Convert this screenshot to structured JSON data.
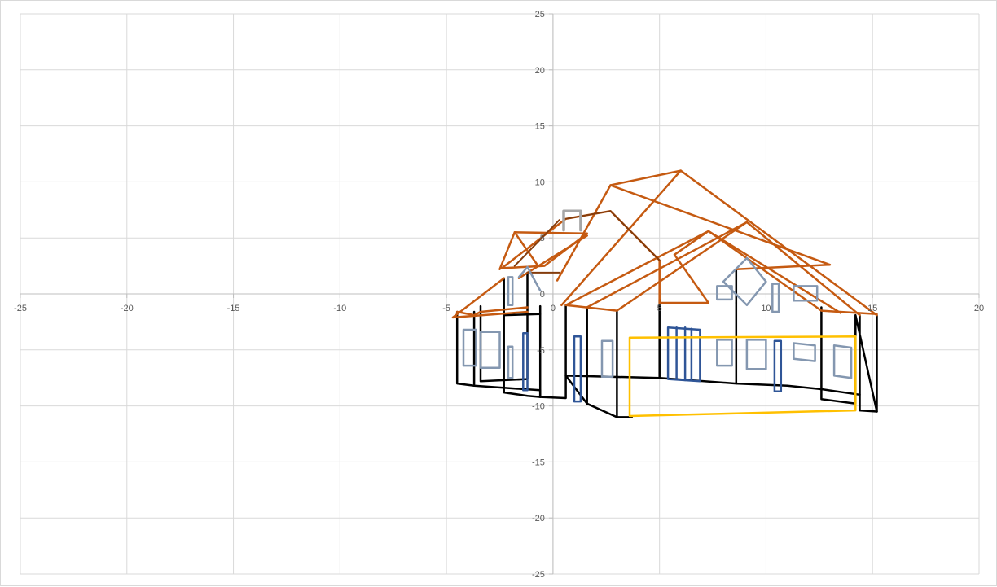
{
  "chart_data": {
    "type": "scatter",
    "title": "",
    "xlabel": "",
    "ylabel": "",
    "xlim": [
      -25,
      20
    ],
    "ylim": [
      -25,
      25
    ],
    "x_major": 5,
    "y_major": 5,
    "grid": true,
    "legend": "none",
    "x_ticks": [
      "-25",
      "-20",
      "-15",
      "-10",
      "-5",
      "0",
      "5",
      "10",
      "15",
      "20"
    ],
    "y_ticks": [
      "25",
      "20",
      "15",
      "10",
      "5",
      "0",
      "-5",
      "-10",
      "-15",
      "-20",
      "-25"
    ],
    "series": [
      {
        "color": "#000000",
        "width": 2.5,
        "segments": [
          [
            [
              -4.5,
              -1.6
            ],
            [
              -4.5,
              -8.0
            ],
            [
              -3.7,
              -8.2
            ],
            [
              -0.6,
              -8.6
            ],
            [
              -0.6,
              -9.2
            ],
            [
              0.6,
              -9.3
            ],
            [
              0.6,
              -7.3
            ],
            [
              5.0,
              -7.5
            ],
            [
              7.1,
              -7.8
            ],
            [
              8.6,
              -8.0
            ],
            [
              8.6,
              -0.8
            ]
          ],
          [
            [
              -3.7,
              -1.6
            ],
            [
              -3.7,
              -8.2
            ]
          ],
          [
            [
              -3.4,
              -1.1
            ],
            [
              -3.4,
              -7.8
            ],
            [
              -1.2,
              -7.6
            ],
            [
              -1.2,
              -1.2
            ]
          ],
          [
            [
              -2.3,
              -1.6
            ],
            [
              -2.3,
              -8.8
            ],
            [
              -1.2,
              -9.1
            ],
            [
              -0.6,
              -9.2
            ]
          ],
          [
            [
              -2.3,
              -1.9
            ],
            [
              -0.6,
              -1.8
            ]
          ],
          [
            [
              -1.2,
              -1.2
            ],
            [
              -1.2,
              1.9
            ]
          ],
          [
            [
              -0.6,
              -9.2
            ],
            [
              -0.6,
              -1.1
            ]
          ],
          [
            [
              -2.3,
              -1.6
            ],
            [
              -2.3,
              1.4
            ]
          ],
          [
            [
              0.6,
              -1.0
            ],
            [
              0.6,
              -7.3
            ],
            [
              1.6,
              -9.8
            ],
            [
              3.0,
              -11.0
            ],
            [
              3.7,
              -11.0
            ]
          ],
          [
            [
              1.6,
              -1.2
            ],
            [
              1.6,
              -9.8
            ]
          ],
          [
            [
              3.0,
              -1.5
            ],
            [
              3.0,
              -11.0
            ]
          ],
          [
            [
              5.0,
              -0.5
            ],
            [
              5.0,
              -7.5
            ]
          ],
          [
            [
              8.6,
              -8.0
            ],
            [
              11.0,
              -8.2
            ],
            [
              12.6,
              -8.5
            ],
            [
              14.4,
              -9.0
            ]
          ],
          [
            [
              8.6,
              -0.8
            ],
            [
              8.6,
              2.2
            ]
          ],
          [
            [
              12.6,
              -1.2
            ],
            [
              12.6,
              -9.4
            ],
            [
              14.2,
              -9.8
            ],
            [
              14.2,
              -1.9
            ],
            [
              15.2,
              -10.5
            ],
            [
              14.4,
              -10.4
            ],
            [
              14.4,
              -1.9
            ]
          ],
          [
            [
              15.2,
              -1.9
            ],
            [
              15.2,
              -10.5
            ]
          ]
        ]
      },
      {
        "color": "#c55a11",
        "width": 2.5,
        "segments": [
          [
            [
              -4.7,
              -2.1
            ],
            [
              -2.3,
              1.4
            ]
          ],
          [
            [
              -4.7,
              -2.1
            ],
            [
              -1.2,
              -1.6
            ]
          ],
          [
            [
              -4.5,
              -1.6
            ],
            [
              -3.7,
              -1.9
            ],
            [
              -3.4,
              -1.6
            ],
            [
              -1.2,
              -1.2
            ]
          ],
          [
            [
              -2.5,
              2.2
            ],
            [
              -1.8,
              5.5
            ],
            [
              1.5,
              5.4
            ]
          ],
          [
            [
              -1.8,
              5.5
            ],
            [
              -0.7,
              2.5
            ]
          ],
          [
            [
              -2.4,
              2.3
            ],
            [
              -0.4,
              2.5
            ],
            [
              1.6,
              5.4
            ]
          ],
          [
            [
              -2.4,
              2.3
            ],
            [
              0.6,
              6.7
            ],
            [
              2.7,
              7.4
            ],
            [
              5.0,
              3.0
            ],
            [
              5.0,
              -0.8
            ]
          ],
          [
            [
              -1.6,
              1.4
            ],
            [
              1.6,
              5.2
            ]
          ],
          [
            [
              0.2,
              1.2
            ],
            [
              2.7,
              9.7
            ],
            [
              13.0,
              2.6
            ],
            [
              8.6,
              2.2
            ]
          ],
          [
            [
              2.7,
              9.7
            ],
            [
              6.0,
              11.0
            ],
            [
              15.2,
              -1.9
            ]
          ],
          [
            [
              0.4,
              -1.0
            ],
            [
              6.0,
              11.0
            ]
          ],
          [
            [
              1.6,
              -1.2
            ],
            [
              9.1,
              6.4
            ],
            [
              14.4,
              -1.9
            ]
          ],
          [
            [
              0.6,
              -1.0
            ],
            [
              7.3,
              5.6
            ],
            [
              12.6,
              -1.5
            ],
            [
              15.2,
              -1.8
            ]
          ],
          [
            [
              0.6,
              -1.0
            ],
            [
              3.0,
              -1.5
            ],
            [
              9.1,
              6.4
            ]
          ],
          [
            [
              5.0,
              -0.8
            ],
            [
              7.3,
              -0.8
            ],
            [
              5.7,
              3.5
            ],
            [
              7.3,
              5.6
            ]
          ],
          [
            [
              7.3,
              5.6
            ],
            [
              13.5,
              -1.7
            ]
          ]
        ]
      },
      {
        "color": "#843c0c",
        "width": 2,
        "segments": [
          [
            [
              0.6,
              6.7
            ],
            [
              2.7,
              7.4
            ],
            [
              5.0,
              3.0
            ]
          ],
          [
            [
              0.3,
              6.6
            ],
            [
              -1.8,
              2.5
            ]
          ],
          [
            [
              -1.2,
              1.9
            ],
            [
              0.3,
              1.9
            ]
          ]
        ]
      },
      {
        "color": "#8497b0",
        "width": 2.5,
        "segments": [
          [
            [
              -4.2,
              -3.2
            ],
            [
              -3.6,
              -3.2
            ],
            [
              -3.6,
              -6.4
            ],
            [
              -4.2,
              -6.4
            ],
            [
              -4.2,
              -3.2
            ]
          ],
          [
            [
              -3.4,
              -3.4
            ],
            [
              -2.5,
              -3.4
            ],
            [
              -2.5,
              -6.6
            ],
            [
              -3.4,
              -6.6
            ],
            [
              -3.4,
              -3.4
            ]
          ],
          [
            [
              -2.1,
              -4.7
            ],
            [
              -1.9,
              -4.7
            ],
            [
              -1.9,
              -7.5
            ],
            [
              -2.1,
              -7.5
            ],
            [
              -2.1,
              -4.7
            ]
          ],
          [
            [
              -2.1,
              1.5
            ],
            [
              -1.9,
              1.5
            ],
            [
              -1.9,
              -1.0
            ],
            [
              -2.1,
              -1.0
            ],
            [
              -2.1,
              1.5
            ]
          ],
          [
            [
              2.3,
              -4.2
            ],
            [
              2.8,
              -4.2
            ],
            [
              2.8,
              -7.4
            ],
            [
              2.3,
              -7.4
            ],
            [
              2.3,
              -4.2
            ]
          ],
          [
            [
              7.7,
              -4.1
            ],
            [
              8.4,
              -4.1
            ],
            [
              8.4,
              -6.4
            ],
            [
              7.7,
              -6.4
            ],
            [
              7.7,
              -4.1
            ]
          ],
          [
            [
              9.1,
              -4.1
            ],
            [
              10.0,
              -4.1
            ],
            [
              10.0,
              -6.7
            ],
            [
              9.1,
              -6.7
            ],
            [
              9.1,
              -4.1
            ]
          ],
          [
            [
              11.3,
              -4.4
            ],
            [
              12.3,
              -4.6
            ],
            [
              12.3,
              -6.0
            ],
            [
              11.3,
              -5.8
            ],
            [
              11.3,
              -4.4
            ]
          ],
          [
            [
              13.2,
              -4.6
            ],
            [
              14.0,
              -4.8
            ],
            [
              14.0,
              -7.5
            ],
            [
              13.2,
              -7.3
            ],
            [
              13.2,
              -4.6
            ]
          ],
          [
            [
              7.7,
              0.7
            ],
            [
              8.4,
              0.7
            ],
            [
              8.4,
              -0.5
            ],
            [
              7.7,
              -0.5
            ],
            [
              7.7,
              0.7
            ]
          ],
          [
            [
              8.0,
              1.1
            ],
            [
              9.1,
              3.2
            ],
            [
              10.0,
              1.1
            ],
            [
              9.1,
              -1.0
            ],
            [
              8.0,
              1.1
            ]
          ],
          [
            [
              10.3,
              0.9
            ],
            [
              10.6,
              0.9
            ],
            [
              10.6,
              -1.6
            ],
            [
              10.3,
              -1.6
            ],
            [
              10.3,
              0.9
            ]
          ],
          [
            [
              11.3,
              0.7
            ],
            [
              12.4,
              0.7
            ],
            [
              12.4,
              -0.6
            ],
            [
              11.3,
              -0.6
            ],
            [
              11.3,
              0.7
            ]
          ],
          [
            [
              -1.6,
              1.5
            ],
            [
              -1.2,
              2.4
            ],
            [
              -0.6,
              0.3
            ]
          ]
        ]
      },
      {
        "color": "#2f5597",
        "width": 2.5,
        "segments": [
          [
            [
              -1.4,
              -3.5
            ],
            [
              -1.2,
              -3.5
            ],
            [
              -1.2,
              -8.6
            ],
            [
              -1.4,
              -8.6
            ],
            [
              -1.4,
              -3.5
            ]
          ],
          [
            [
              1.0,
              -3.8
            ],
            [
              1.3,
              -3.8
            ],
            [
              1.3,
              -9.6
            ],
            [
              1.0,
              -9.6
            ],
            [
              1.0,
              -3.8
            ]
          ],
          [
            [
              5.4,
              -3.0
            ],
            [
              6.9,
              -3.2
            ],
            [
              6.9,
              -7.8
            ],
            [
              5.4,
              -7.6
            ],
            [
              5.4,
              -3.0
            ]
          ],
          [
            [
              5.8,
              -3.0
            ],
            [
              5.8,
              -7.6
            ]
          ],
          [
            [
              6.2,
              -3.0
            ],
            [
              6.2,
              -7.7
            ]
          ],
          [
            [
              6.5,
              -3.1
            ],
            [
              6.5,
              -7.7
            ]
          ],
          [
            [
              10.4,
              -4.2
            ],
            [
              10.7,
              -4.2
            ],
            [
              10.7,
              -8.7
            ],
            [
              10.4,
              -8.7
            ],
            [
              10.4,
              -4.2
            ]
          ]
        ]
      },
      {
        "color": "#a6a6a6",
        "width": 3.5,
        "segments": [
          [
            [
              0.5,
              5.7
            ],
            [
              0.5,
              7.4
            ],
            [
              1.3,
              7.4
            ],
            [
              1.3,
              5.7
            ]
          ]
        ]
      },
      {
        "color": "#ffc000",
        "width": 2.5,
        "segments": [
          [
            [
              3.6,
              -3.9
            ],
            [
              14.2,
              -3.8
            ],
            [
              14.2,
              -10.4
            ],
            [
              3.6,
              -10.9
            ],
            [
              3.6,
              -3.9
            ]
          ]
        ]
      }
    ]
  }
}
